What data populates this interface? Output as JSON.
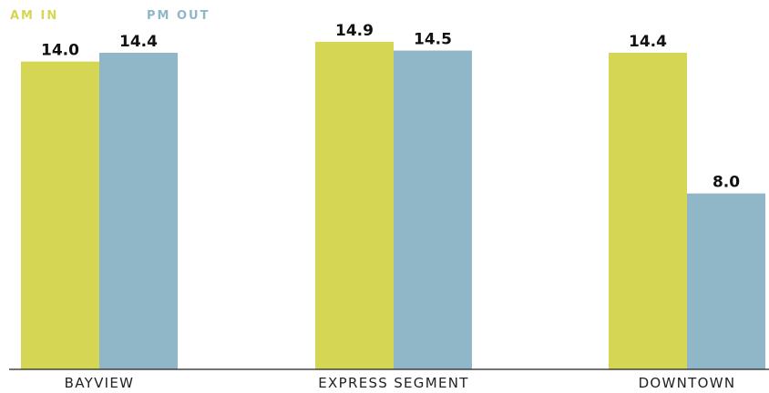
{
  "chart_data": {
    "type": "bar",
    "categories": [
      "BAYVIEW",
      "EXPRESS SEGMENT",
      "DOWNTOWN"
    ],
    "series": [
      {
        "name": "AM IN",
        "values": [
          14.0,
          14.9,
          14.4
        ],
        "labels": [
          "14.0",
          "14.9",
          "14.4"
        ],
        "color": "#d4d654"
      },
      {
        "name": "PM OUT",
        "values": [
          14.4,
          14.5,
          8.0
        ],
        "labels": [
          "14.4",
          "14.5",
          "8.0"
        ],
        "color": "#8fb7c7"
      }
    ],
    "ylim": [
      0,
      16.8
    ],
    "legend": "top-left",
    "grid": false
  }
}
